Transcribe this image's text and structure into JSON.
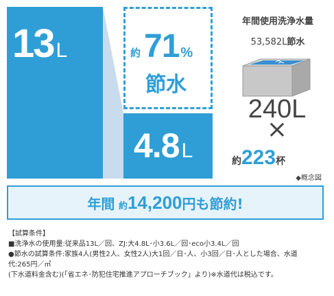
{
  "left_panel": {
    "current_value": "13",
    "current_unit": "L",
    "new_value": "4.8",
    "new_unit": "L",
    "saving_prefix": "約",
    "saving_percent": "71",
    "saving_percent_sign": "%",
    "saving_label": "節水"
  },
  "right_panel": {
    "title": "年間使用洗浄水量",
    "saved_volume": "53,582L",
    "saved_label": "節水",
    "tub_volume": "240L",
    "times_sign": "×",
    "cups_prefix": "約",
    "cups_value": "223",
    "cups_unit": "杯",
    "figure_note": "◆概念図"
  },
  "banner": {
    "part1": "年間",
    "part2": "約",
    "part3": "14,200",
    "part4": "円も節約!"
  },
  "conditions": {
    "heading": "【試算条件】",
    "line1": "■洗浄水の使用量:従来品13L／回、ZJ:大4.8L･小3.6L／回･eco小3.4L／回",
    "line2": "●節水の試算条件:家族4人(男性2人、女性2人)大1回／日･人、小3回／日･人とした場合、水道",
    "line3": "代:265円／㎥",
    "line4": "(下水道料金含む)(「省エネ･防犯住宅推進アプローチブック」より)※水道代は税込です。"
  },
  "colors": {
    "accent": "#2f9ed6",
    "light_accent": "#e6f3fb",
    "wedge": "#c9dced"
  }
}
